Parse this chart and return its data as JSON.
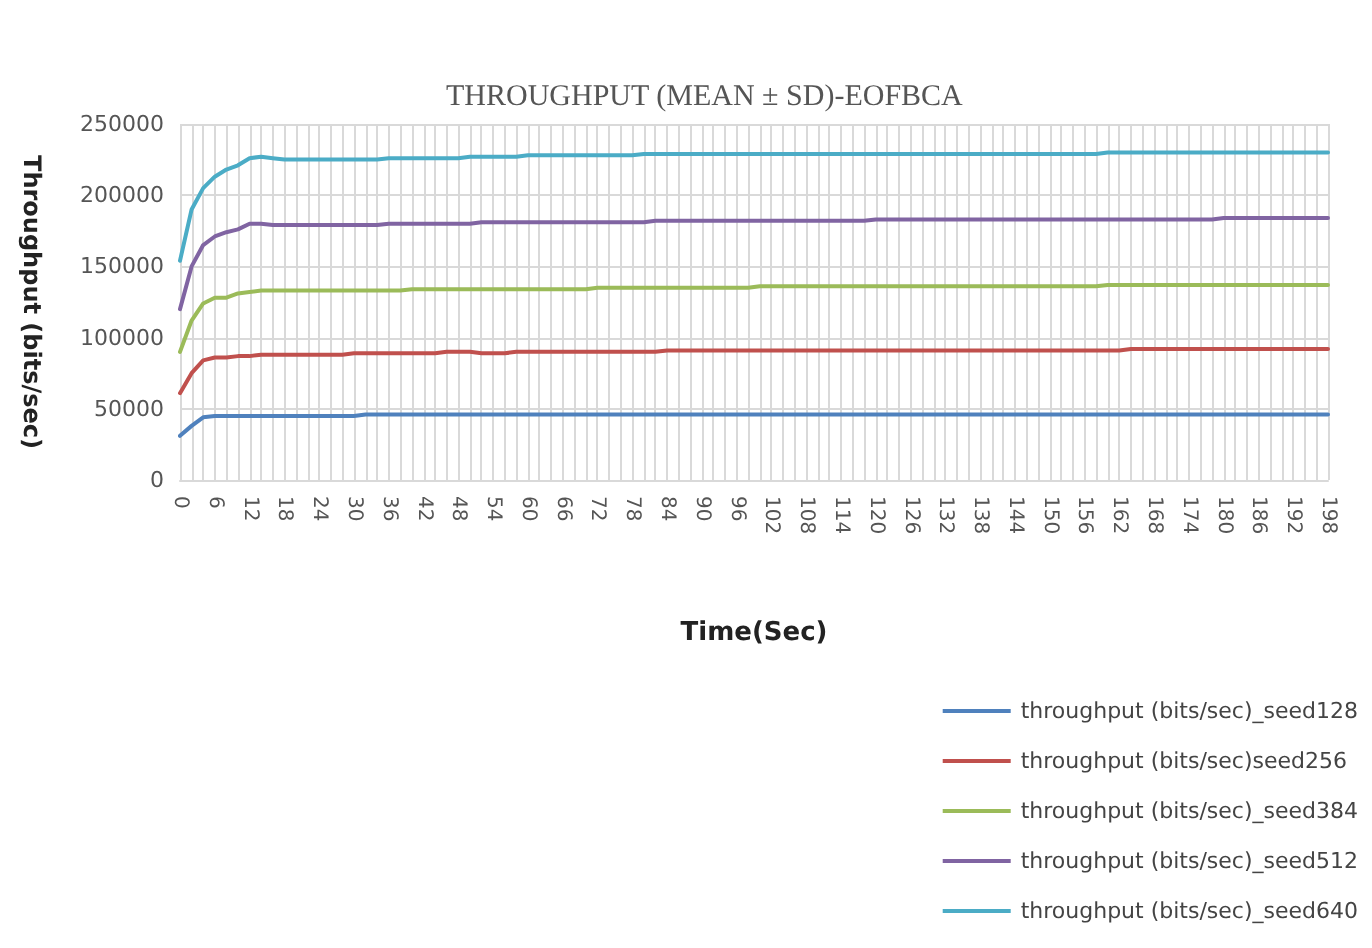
{
  "chart_data": {
    "type": "line",
    "title": "THROUGHPUT (MEAN ± SD)-EOFBCA",
    "xlabel": "Time(Sec)",
    "ylabel": "Throughput (bits/sec)",
    "categories": [
      "0",
      null,
      null,
      "6",
      null,
      null,
      "12",
      null,
      null,
      "18",
      null,
      null,
      "24",
      null,
      null,
      "30",
      null,
      null,
      "36",
      null,
      null,
      "42",
      null,
      null,
      "48",
      null,
      null,
      "54",
      null,
      null,
      "60",
      null,
      null,
      "66",
      null,
      null,
      "72",
      null,
      null,
      "78",
      null,
      null,
      "84",
      null,
      null,
      "90",
      null,
      null,
      "96",
      null,
      null,
      "102",
      null,
      null,
      "108",
      null,
      null,
      "114",
      null,
      null,
      "120",
      null,
      null,
      "126",
      null,
      null,
      "132",
      null,
      null,
      "138",
      null,
      null,
      "144",
      null,
      null,
      "150",
      null,
      null,
      "156",
      null,
      null,
      "162",
      null,
      null,
      "168",
      null,
      null,
      "174",
      null,
      null,
      "180",
      null,
      null,
      "186",
      null,
      null,
      "192",
      null,
      null,
      "198"
    ],
    "ylim": [
      0,
      250000
    ],
    "yticks": [
      0,
      {
        "value": 50000,
        "label": "50000"
      },
      {
        "value": 100000,
        "label": "100000"
      },
      {
        "value": 150000,
        "label": "150000"
      },
      {
        "value": 200000,
        "label": "200000"
      },
      {
        "value": 250000,
        "label": "250000"
      }
    ],
    "grid": true,
    "legend": "bottom right",
    "marker": "none",
    "line_style": "solid",
    "series": [
      {
        "name": "throughput (bits/sec)_seed128",
        "color": "#4f81bd",
        "values": [
          31000,
          38000,
          44000,
          45000,
          45000,
          45000,
          45000,
          45000,
          45000,
          45000,
          45000,
          45000,
          45000,
          45000,
          45000,
          45000,
          46000,
          46000,
          46000,
          46000,
          46000,
          46000,
          46000,
          46000,
          46000,
          46000,
          46000,
          46000,
          46000,
          46000,
          46000,
          46000,
          46000,
          46000,
          46000,
          46000,
          46000,
          46000,
          46000,
          46000,
          46000,
          46000,
          46000,
          46000,
          46000,
          46000,
          46000,
          46000,
          46000,
          46000,
          46000,
          46000,
          46000,
          46000,
          46000,
          46000,
          46000,
          46000,
          46000,
          46000,
          46000,
          46000,
          46000,
          46000,
          46000,
          46000,
          46000,
          46000,
          46000,
          46000,
          46000,
          46000,
          46000,
          46000,
          46000,
          46000,
          46000,
          46000,
          46000,
          46000,
          46000,
          46000,
          46000,
          46000,
          46000,
          46000,
          46000,
          46000,
          46000,
          46000,
          46000,
          46000,
          46000,
          46000,
          46000,
          46000,
          46000,
          46000,
          46000,
          46000
        ]
      },
      {
        "name": "throughput (bits/sec)seed256",
        "color": "#c0504d",
        "values": [
          61000,
          75000,
          84000,
          86000,
          86000,
          87000,
          87000,
          88000,
          88000,
          88000,
          88000,
          88000,
          88000,
          88000,
          88000,
          89000,
          89000,
          89000,
          89000,
          89000,
          89000,
          89000,
          89000,
          90000,
          90000,
          90000,
          89000,
          89000,
          89000,
          90000,
          90000,
          90000,
          90000,
          90000,
          90000,
          90000,
          90000,
          90000,
          90000,
          90000,
          90000,
          90000,
          91000,
          91000,
          91000,
          91000,
          91000,
          91000,
          91000,
          91000,
          91000,
          91000,
          91000,
          91000,
          91000,
          91000,
          91000,
          91000,
          91000,
          91000,
          91000,
          91000,
          91000,
          91000,
          91000,
          91000,
          91000,
          91000,
          91000,
          91000,
          91000,
          91000,
          91000,
          91000,
          91000,
          91000,
          91000,
          91000,
          91000,
          91000,
          91000,
          91000,
          92000,
          92000,
          92000,
          92000,
          92000,
          92000,
          92000,
          92000,
          92000,
          92000,
          92000,
          92000,
          92000,
          92000,
          92000,
          92000,
          92000,
          92000
        ]
      },
      {
        "name": "throughput (bits/sec)_seed384",
        "color": "#9bbb59",
        "values": [
          90000,
          112000,
          124000,
          128000,
          128000,
          131000,
          132000,
          133000,
          133000,
          133000,
          133000,
          133000,
          133000,
          133000,
          133000,
          133000,
          133000,
          133000,
          133000,
          133000,
          134000,
          134000,
          134000,
          134000,
          134000,
          134000,
          134000,
          134000,
          134000,
          134000,
          134000,
          134000,
          134000,
          134000,
          134000,
          134000,
          135000,
          135000,
          135000,
          135000,
          135000,
          135000,
          135000,
          135000,
          135000,
          135000,
          135000,
          135000,
          135000,
          135000,
          136000,
          136000,
          136000,
          136000,
          136000,
          136000,
          136000,
          136000,
          136000,
          136000,
          136000,
          136000,
          136000,
          136000,
          136000,
          136000,
          136000,
          136000,
          136000,
          136000,
          136000,
          136000,
          136000,
          136000,
          136000,
          136000,
          136000,
          136000,
          136000,
          136000,
          137000,
          137000,
          137000,
          137000,
          137000,
          137000,
          137000,
          137000,
          137000,
          137000,
          137000,
          137000,
          137000,
          137000,
          137000,
          137000,
          137000,
          137000,
          137000,
          137000
        ]
      },
      {
        "name": "throughput (bits/sec)_seed512",
        "color": "#8064a2",
        "values": [
          120000,
          150000,
          165000,
          171000,
          174000,
          176000,
          180000,
          180000,
          179000,
          179000,
          179000,
          179000,
          179000,
          179000,
          179000,
          179000,
          179000,
          179000,
          180000,
          180000,
          180000,
          180000,
          180000,
          180000,
          180000,
          180000,
          181000,
          181000,
          181000,
          181000,
          181000,
          181000,
          181000,
          181000,
          181000,
          181000,
          181000,
          181000,
          181000,
          181000,
          181000,
          182000,
          182000,
          182000,
          182000,
          182000,
          182000,
          182000,
          182000,
          182000,
          182000,
          182000,
          182000,
          182000,
          182000,
          182000,
          182000,
          182000,
          182000,
          182000,
          183000,
          183000,
          183000,
          183000,
          183000,
          183000,
          183000,
          183000,
          183000,
          183000,
          183000,
          183000,
          183000,
          183000,
          183000,
          183000,
          183000,
          183000,
          183000,
          183000,
          183000,
          183000,
          183000,
          183000,
          183000,
          183000,
          183000,
          183000,
          183000,
          183000,
          184000,
          184000,
          184000,
          184000,
          184000,
          184000,
          184000,
          184000,
          184000,
          184000
        ]
      },
      {
        "name": "throughput (bits/sec)_seed640",
        "color": "#4bacc6",
        "values": [
          154000,
          190000,
          205000,
          213000,
          218000,
          221000,
          226000,
          227000,
          226000,
          225000,
          225000,
          225000,
          225000,
          225000,
          225000,
          225000,
          225000,
          225000,
          226000,
          226000,
          226000,
          226000,
          226000,
          226000,
          226000,
          227000,
          227000,
          227000,
          227000,
          227000,
          228000,
          228000,
          228000,
          228000,
          228000,
          228000,
          228000,
          228000,
          228000,
          228000,
          229000,
          229000,
          229000,
          229000,
          229000,
          229000,
          229000,
          229000,
          229000,
          229000,
          229000,
          229000,
          229000,
          229000,
          229000,
          229000,
          229000,
          229000,
          229000,
          229000,
          229000,
          229000,
          229000,
          229000,
          229000,
          229000,
          229000,
          229000,
          229000,
          229000,
          229000,
          229000,
          229000,
          229000,
          229000,
          229000,
          229000,
          229000,
          229000,
          229000,
          230000,
          230000,
          230000,
          230000,
          230000,
          230000,
          230000,
          230000,
          230000,
          230000,
          230000,
          230000,
          230000,
          230000,
          230000,
          230000,
          230000,
          230000,
          230000,
          230000
        ]
      }
    ]
  }
}
